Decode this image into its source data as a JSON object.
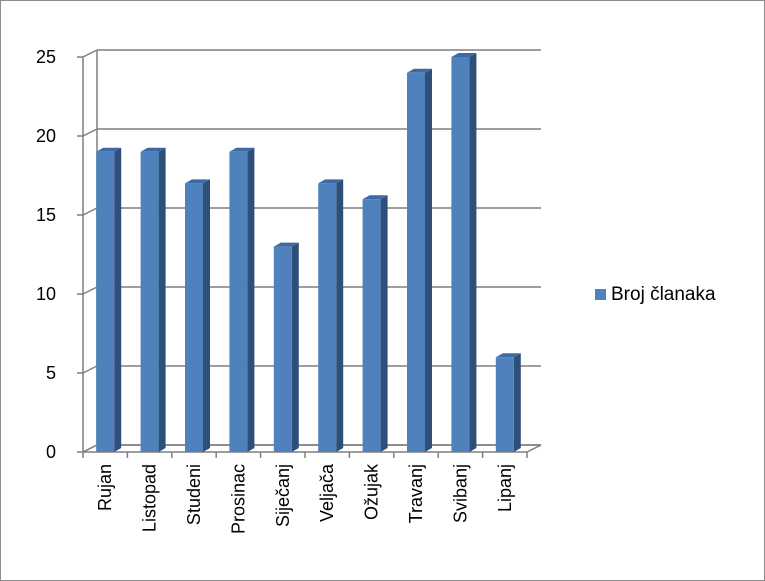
{
  "chart_data": {
    "type": "bar",
    "style": "3d-column",
    "categories": [
      "Rujan",
      "Listopad",
      "Studeni",
      "Prosinac",
      "Siječanj",
      "Veljača",
      "Ožujak",
      "Travanj",
      "Svibanj",
      "Lipanj"
    ],
    "series": [
      {
        "name": "Broj članaka",
        "values": [
          19,
          19,
          17,
          19,
          13,
          17,
          16,
          24,
          25,
          6
        ]
      }
    ],
    "ylim": [
      0,
      25
    ],
    "yticks": [
      0,
      5,
      10,
      15,
      20,
      25
    ],
    "grid": true,
    "legend_position": "right",
    "colors": {
      "bar_front": "#4f81bd",
      "bar_side": "#2d4f7a",
      "bar_top": "#3e6aa3",
      "grid": "#7f7f7f"
    }
  }
}
